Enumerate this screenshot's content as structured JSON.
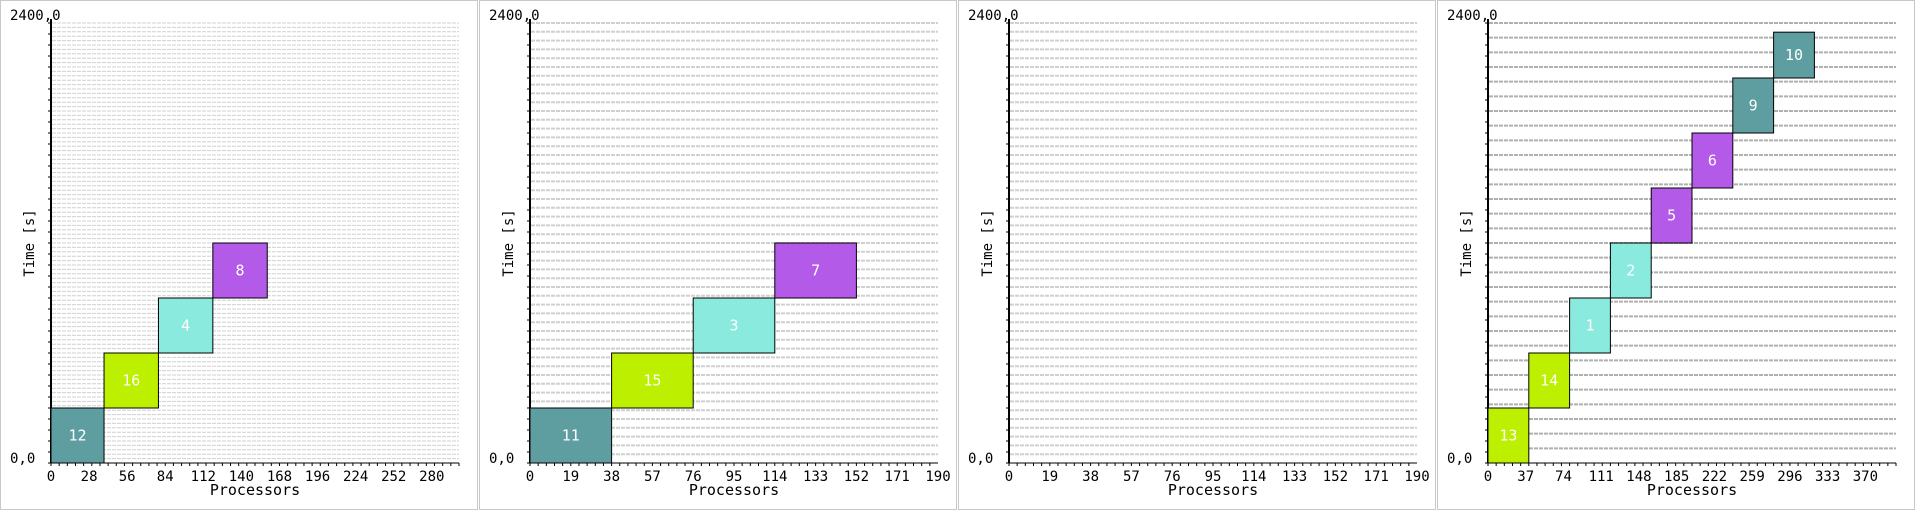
{
  "chart_data": [
    {
      "type": "gantt",
      "ytop_label": "2400,0",
      "origin_label": "0,0",
      "xlabel": "Processors",
      "ylabel": "Time [s]",
      "x_ticks": [
        0,
        28,
        56,
        84,
        112,
        140,
        168,
        196,
        224,
        252,
        280
      ],
      "xlim": [
        0,
        300
      ],
      "ylim": [
        0,
        2400
      ],
      "line_count": 100,
      "stripe_color": "#d0d0d0",
      "tasks": [
        {
          "label": "12",
          "x0": 0,
          "x1": 39,
          "y0": 0,
          "y1": 300,
          "color": "#5f9ea0"
        },
        {
          "label": "16",
          "x0": 39,
          "x1": 79,
          "y0": 300,
          "y1": 600,
          "color": "#bdef00"
        },
        {
          "label": "4",
          "x0": 79,
          "x1": 119,
          "y0": 600,
          "y1": 900,
          "color": "#8aeade"
        },
        {
          "label": "8",
          "x0": 119,
          "x1": 159,
          "y0": 900,
          "y1": 1200,
          "color": "#b45ae8"
        }
      ]
    },
    {
      "type": "gantt",
      "ytop_label": "2400,0",
      "origin_label": "0,0",
      "xlabel": "Processors",
      "ylabel": "Time [s]",
      "x_ticks": [
        0,
        19,
        38,
        57,
        76,
        95,
        114,
        133,
        152,
        171,
        190
      ],
      "xlim": [
        0,
        190
      ],
      "ylim": [
        0,
        2400
      ],
      "line_count": 50,
      "stripe_color": "#d0d0d0",
      "tasks": [
        {
          "label": "11",
          "x0": 0,
          "x1": 38,
          "y0": 0,
          "y1": 300,
          "color": "#5f9ea0"
        },
        {
          "label": "15",
          "x0": 38,
          "x1": 76,
          "y0": 300,
          "y1": 600,
          "color": "#bdef00"
        },
        {
          "label": "3",
          "x0": 76,
          "x1": 114,
          "y0": 600,
          "y1": 900,
          "color": "#8aeade"
        },
        {
          "label": "7",
          "x0": 114,
          "x1": 152,
          "y0": 900,
          "y1": 1200,
          "color": "#b45ae8"
        }
      ]
    },
    {
      "type": "gantt",
      "ytop_label": "2400,0",
      "origin_label": "0,0",
      "xlabel": "Processors",
      "ylabel": "Time [s]",
      "x_ticks": [
        0,
        19,
        38,
        57,
        76,
        95,
        114,
        133,
        152,
        171,
        190
      ],
      "xlim": [
        0,
        190
      ],
      "ylim": [
        0,
        2400
      ],
      "line_count": 50,
      "stripe_color": "#d0d0d0",
      "tasks": []
    },
    {
      "type": "gantt",
      "ytop_label": "2400,0",
      "origin_label": "0,0",
      "xlabel": "Processors",
      "ylabel": "Time [s]",
      "x_ticks": [
        0,
        37,
        74,
        111,
        148,
        185,
        222,
        259,
        296,
        333,
        370
      ],
      "xlim": [
        0,
        400
      ],
      "ylim": [
        0,
        2400
      ],
      "line_count": 30,
      "stripe_color": "#b0b0b0",
      "tasks": [
        {
          "label": "13",
          "x0": 0,
          "x1": 40,
          "y0": 0,
          "y1": 300,
          "color": "#bdef00"
        },
        {
          "label": "14",
          "x0": 40,
          "x1": 80,
          "y0": 300,
          "y1": 600,
          "color": "#bdef00"
        },
        {
          "label": "1",
          "x0": 80,
          "x1": 120,
          "y0": 600,
          "y1": 900,
          "color": "#8aeade"
        },
        {
          "label": "2",
          "x0": 120,
          "x1": 160,
          "y0": 900,
          "y1": 1200,
          "color": "#8aeade"
        },
        {
          "label": "5",
          "x0": 160,
          "x1": 200,
          "y0": 1200,
          "y1": 1500,
          "color": "#b45ae8"
        },
        {
          "label": "6",
          "x0": 200,
          "x1": 240,
          "y0": 1500,
          "y1": 1800,
          "color": "#b45ae8"
        },
        {
          "label": "9",
          "x0": 240,
          "x1": 280,
          "y0": 1800,
          "y1": 2100,
          "color": "#5f9ea0"
        },
        {
          "label": "10",
          "x0": 280,
          "x1": 320,
          "y0": 2100,
          "y1": 2350,
          "color": "#5f9ea0"
        }
      ]
    }
  ]
}
